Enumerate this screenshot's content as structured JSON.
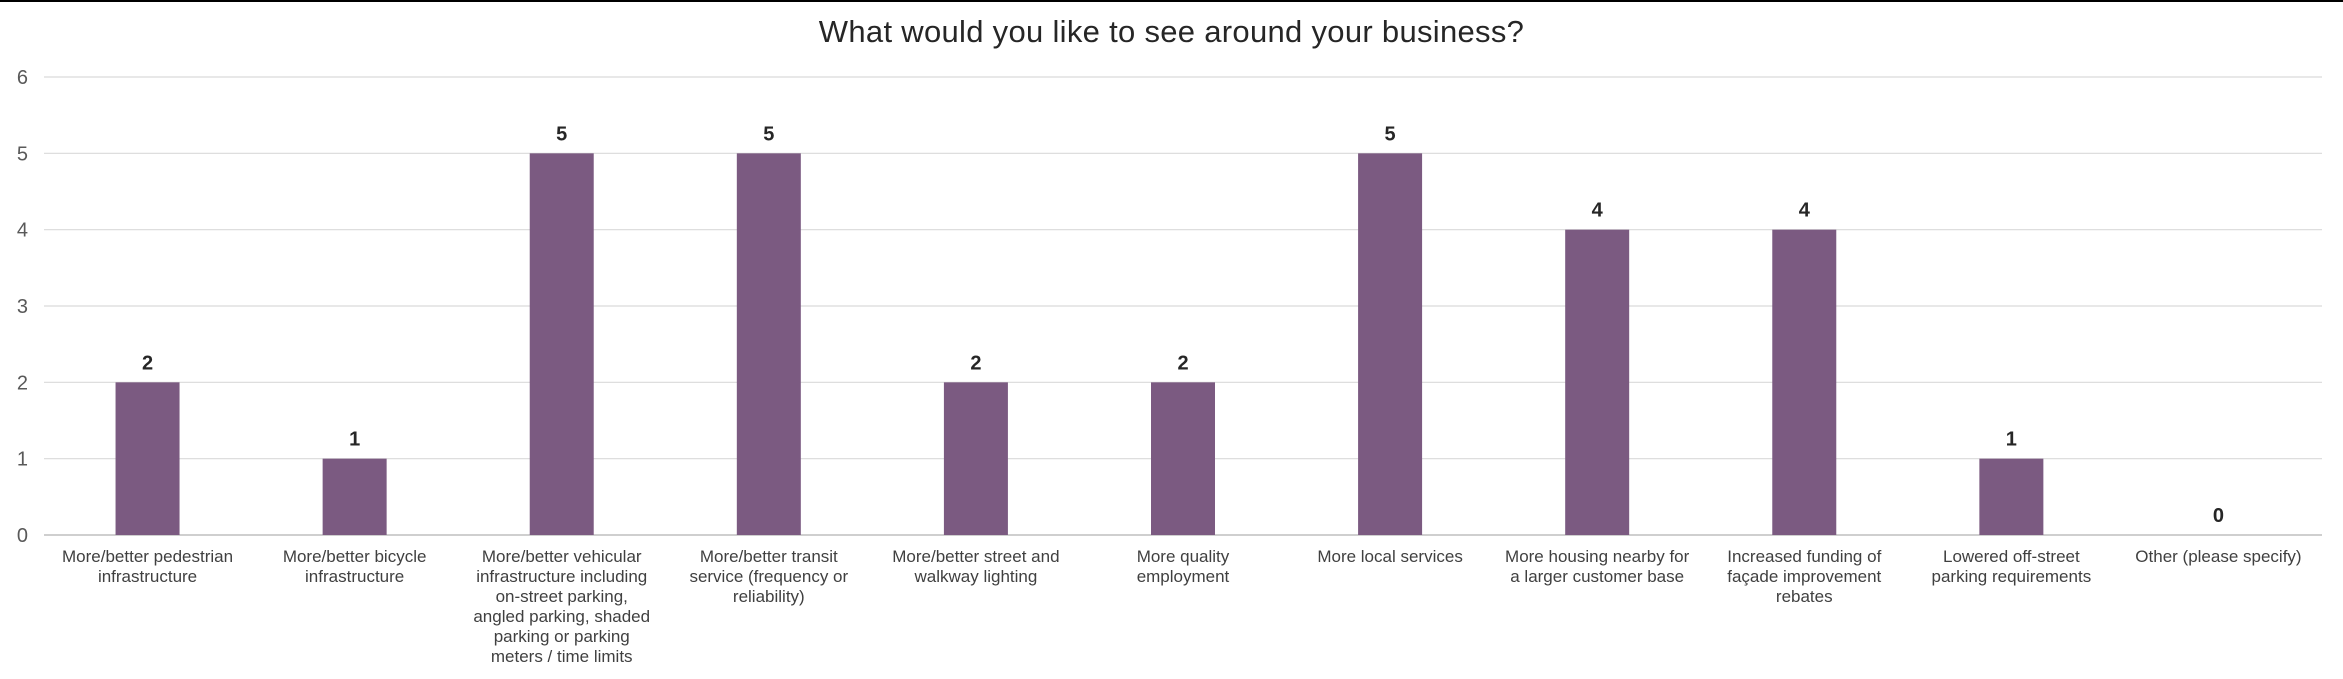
{
  "chart_data": {
    "type": "bar",
    "title": "What would you like to see around your business?",
    "xlabel": "",
    "ylabel": "",
    "ylim": [
      0,
      6
    ],
    "yticks": [
      0,
      1,
      2,
      3,
      4,
      5,
      6
    ],
    "grid": true,
    "legend": "none",
    "bar_color": "#7B5A81",
    "categories": [
      [
        "More/better pedestrian",
        "infrastructure"
      ],
      [
        "More/better bicycle",
        "infrastructure"
      ],
      [
        "More/better vehicular",
        "infrastructure including",
        "on-street parking,",
        "angled parking, shaded",
        "parking or parking",
        "meters / time limits"
      ],
      [
        "More/better transit",
        "service (frequency or",
        "reliability)"
      ],
      [
        "More/better street and",
        "walkway lighting"
      ],
      [
        "More quality",
        "employment"
      ],
      [
        "More local services"
      ],
      [
        "More housing nearby for",
        "a larger customer base"
      ],
      [
        "Increased funding of",
        "façade improvement",
        "rebates"
      ],
      [
        "Lowered off-street",
        "parking requirements"
      ],
      [
        "Other (please specify)"
      ]
    ],
    "values": [
      2,
      1,
      5,
      5,
      2,
      2,
      5,
      4,
      4,
      1,
      0
    ]
  }
}
